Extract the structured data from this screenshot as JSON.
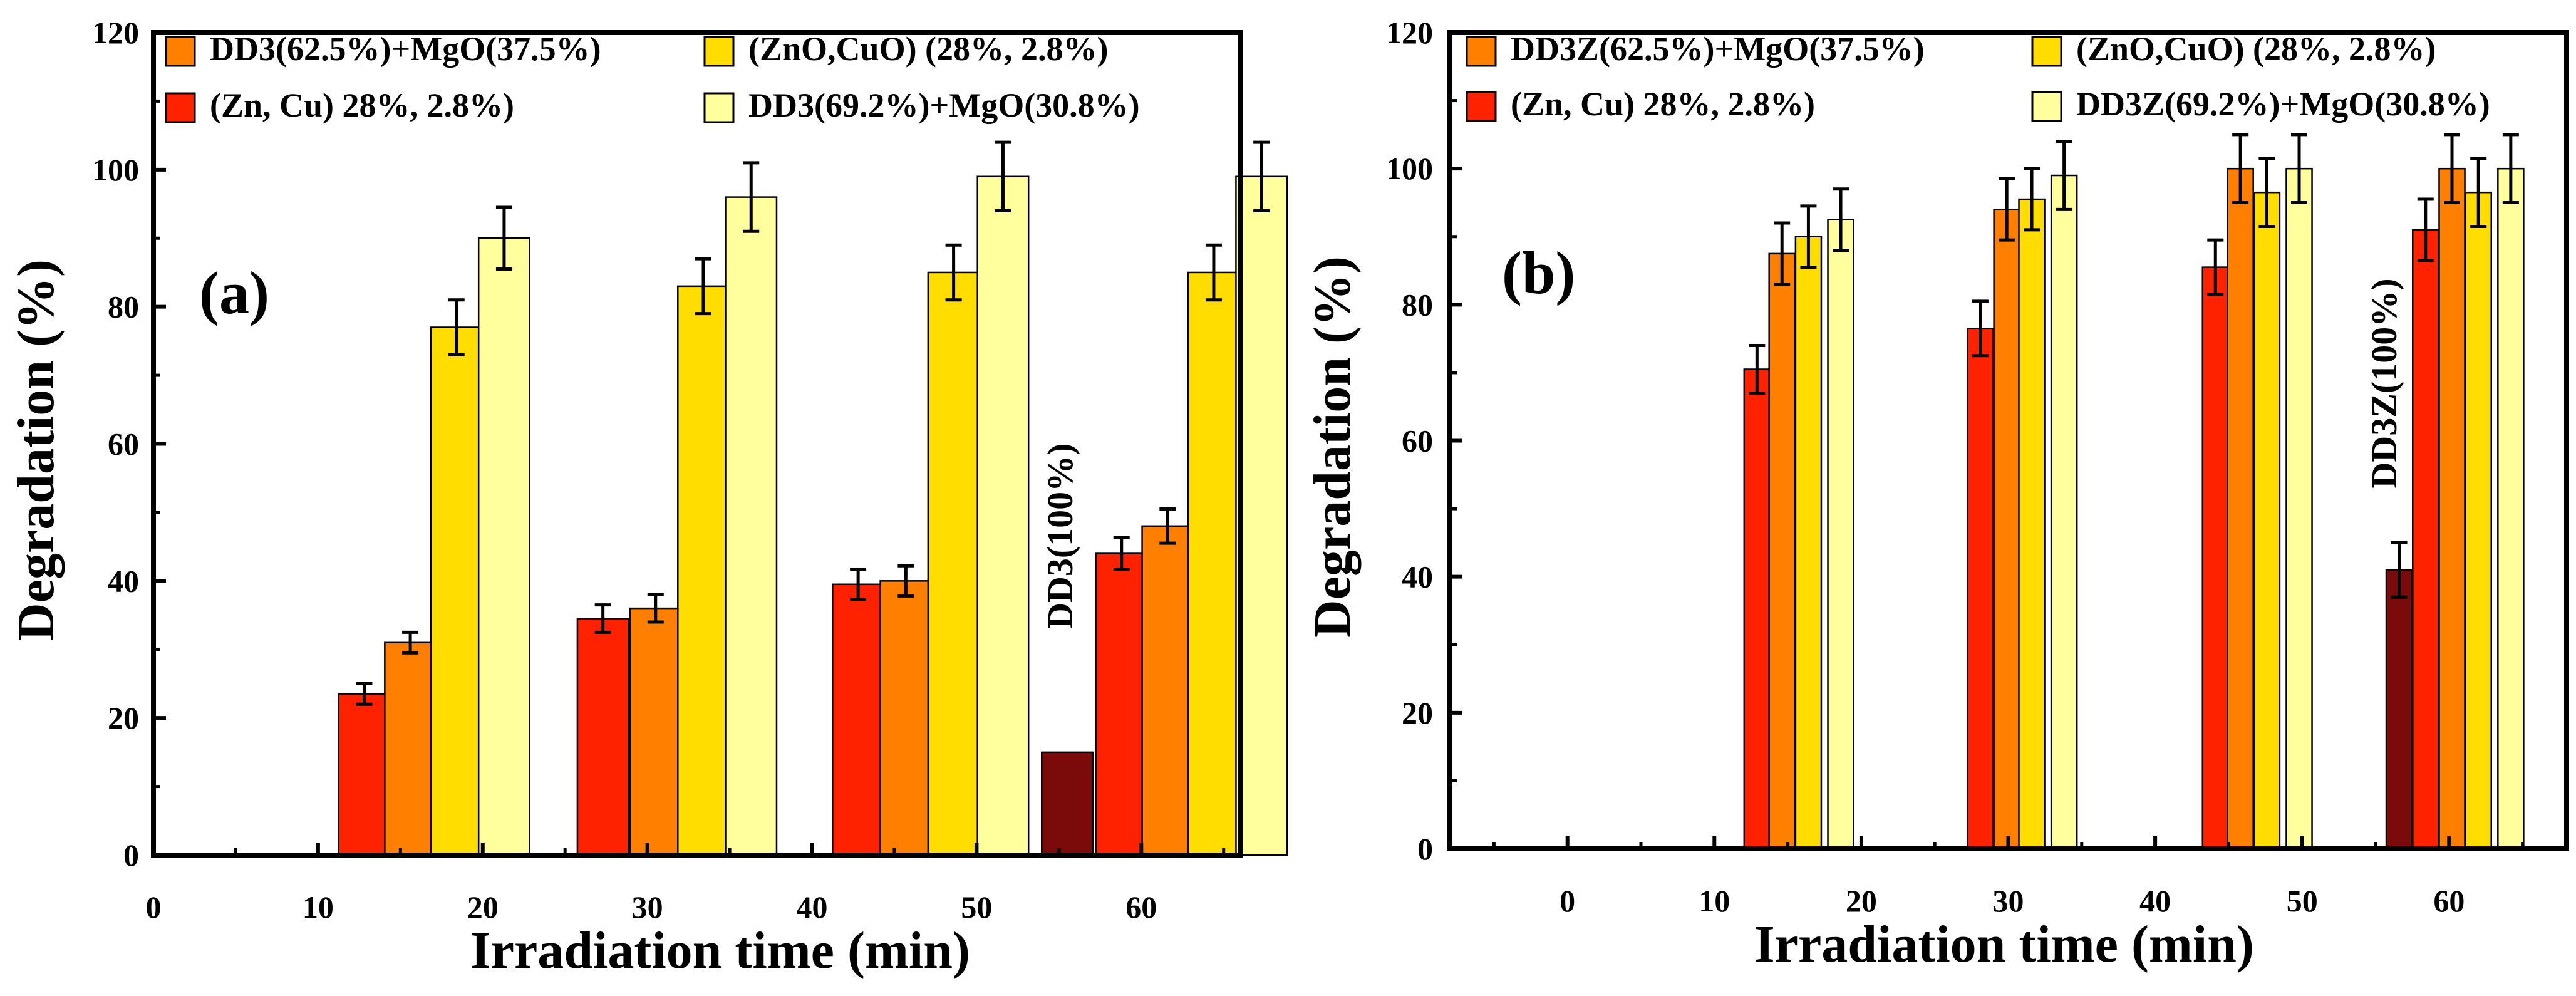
{
  "colors": {
    "dd3_pure": "#7b0a0a",
    "zn_cu": "#ff2200",
    "dd3_62": "#ff8000",
    "zno_cuo": "#ffdd00",
    "dd3_69": "#ffff9e"
  },
  "chart_data": [
    {
      "type": "bar",
      "panel_label": "(a)",
      "xlabel": "Irradiation time (min)",
      "ylabel": "Degradation (%)",
      "xlim": [
        0,
        66
      ],
      "ylim": [
        0,
        120
      ],
      "xticks": [
        0,
        10,
        20,
        30,
        40,
        50,
        60
      ],
      "xminor": [
        5,
        15,
        25,
        35,
        45,
        55,
        65
      ],
      "yticks": [
        0,
        20,
        40,
        60,
        80,
        100,
        120
      ],
      "legend": [
        {
          "label": "DD3(62.5%)+MgO(37.5%)",
          "color_key": "dd3_62"
        },
        {
          "label": "(ZnO,CuO) (28%, 2.8%)",
          "color_key": "zno_cuo"
        },
        {
          "label": "(Zn, Cu) 28%, 2.8%)",
          "color_key": "zn_cu"
        },
        {
          "label": "DD3(69.2%)+MgO(30.8%)",
          "color_key": "dd3_69"
        }
      ],
      "annotation": {
        "text": "DD3(100%)",
        "x": 55.8,
        "y": 33
      },
      "bar_width": 3.1,
      "series": [
        {
          "name": "DD3(100%)",
          "color_key": "dd3_pure",
          "x": [
            55.5
          ],
          "values": [
            15
          ],
          "errors": [
            0
          ]
        },
        {
          "name": "(Zn, Cu) 28%, 2.8%)",
          "color_key": "zn_cu",
          "x": [
            12.8,
            27.3,
            42.8,
            58.8
          ],
          "values": [
            23.5,
            34.5,
            39.5,
            44
          ],
          "errors": [
            1.5,
            2,
            2.2,
            2.3
          ]
        },
        {
          "name": "DD3(62.5%)+MgO(37.5%)",
          "color_key": "dd3_62",
          "x": [
            15.6,
            30.5,
            45.7,
            61.6
          ],
          "values": [
            31,
            36,
            40,
            48
          ],
          "errors": [
            1.5,
            2,
            2.2,
            2.5
          ]
        },
        {
          "name": "(ZnO,CuO) (28%, 2.8%)",
          "color_key": "zno_cuo",
          "x": [
            18.4,
            33.4,
            48.6,
            64.4
          ],
          "values": [
            77,
            83,
            85,
            85
          ],
          "errors": [
            4,
            4,
            4,
            4
          ]
        },
        {
          "name": "DD3(69.2%)+MgO(30.8%)",
          "color_key": "dd3_69",
          "x": [
            21.3,
            36.3,
            51.6,
            67.3
          ],
          "values": [
            90,
            96,
            99,
            99
          ],
          "errors": [
            4.5,
            5,
            5,
            5
          ]
        }
      ]
    },
    {
      "type": "bar",
      "panel_label": "(b)",
      "xlabel": "Irradiation time (min)",
      "ylabel": "Degradation (%)",
      "xlim": [
        -8,
        68
      ],
      "ylim": [
        0,
        120
      ],
      "xticks": [
        0,
        10,
        20,
        30,
        40,
        50,
        60
      ],
      "xminor": [
        -5,
        5,
        15,
        25,
        35,
        45,
        55,
        65
      ],
      "yticks": [
        0,
        20,
        40,
        60,
        80,
        100,
        120
      ],
      "legend": [
        {
          "label": "DD3Z(62.5%)+MgO(37.5%)",
          "color_key": "dd3_62"
        },
        {
          "label": "(ZnO,CuO) (28%, 2.8%)",
          "color_key": "zno_cuo"
        },
        {
          "label": "(Zn, Cu) 28%, 2.8%)",
          "color_key": "zn_cu"
        },
        {
          "label": "DD3Z(69.2%)+MgO(30.8%)",
          "color_key": "dd3_69"
        }
      ],
      "annotation": {
        "text": "DD3Z(100%)",
        "x": 56.4,
        "y": 53
      },
      "bar_width": 1.75,
      "series": [
        {
          "name": "DD3Z(100%)",
          "color_key": "dd3_pure",
          "x": [
            56.6
          ],
          "values": [
            41
          ],
          "errors": [
            4
          ]
        },
        {
          "name": "(Zn, Cu) 28%, 2.8%)",
          "color_key": "zn_cu",
          "x": [
            12.9,
            28.1,
            44.1,
            58.4
          ],
          "values": [
            70.5,
            76.5,
            85.5,
            91
          ],
          "errors": [
            3.5,
            4,
            4,
            4.5
          ]
        },
        {
          "name": "DD3Z(62.5%)+MgO(37.5%)",
          "color_key": "dd3_62",
          "x": [
            14.6,
            29.9,
            45.8,
            60.2
          ],
          "values": [
            87.5,
            94,
            100,
            100
          ],
          "errors": [
            4.5,
            4.5,
            5,
            5
          ]
        },
        {
          "name": "(ZnO,CuO) (28%, 2.8%)",
          "color_key": "zno_cuo",
          "x": [
            16.4,
            31.6,
            47.6,
            62.0
          ],
          "values": [
            90,
            95.5,
            96.5,
            96.5
          ],
          "errors": [
            4.5,
            4.5,
            5,
            5
          ]
        },
        {
          "name": "DD3Z(69.2%)+MgO(30.8%)",
          "color_key": "dd3_69",
          "x": [
            18.6,
            33.8,
            49.8,
            64.2
          ],
          "values": [
            92.5,
            99,
            100,
            100
          ],
          "errors": [
            4.5,
            5,
            5,
            5
          ]
        }
      ]
    }
  ]
}
